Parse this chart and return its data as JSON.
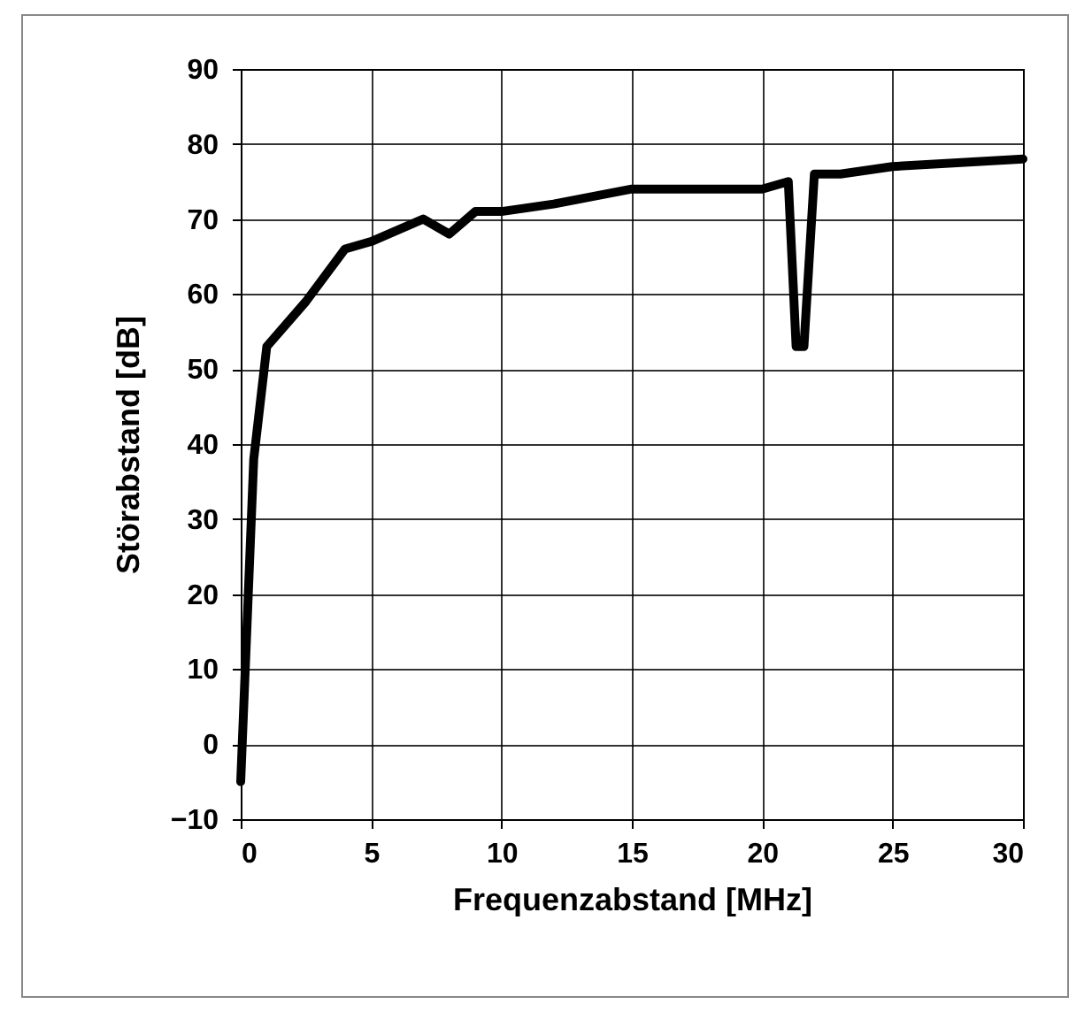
{
  "chart_data": {
    "type": "line",
    "xlabel": "Frequenzabstand [MHz]",
    "ylabel": "Störabstand [dB]",
    "x": [
      0,
      0.5,
      1,
      2.5,
      4,
      5,
      7,
      8,
      9,
      10,
      12,
      15,
      20,
      21,
      21.3,
      21.6,
      22,
      23,
      25,
      30
    ],
    "series": [
      {
        "color": "#000000",
        "values": [
          -5,
          38,
          53,
          59,
          66,
          67,
          70,
          68,
          71,
          71,
          72,
          74,
          74,
          75,
          53,
          53,
          76,
          76,
          77,
          78
        ]
      }
    ],
    "xlim": [
      0,
      30
    ],
    "xticks": [
      0,
      5,
      10,
      15,
      20,
      25,
      30
    ],
    "ylim": [
      -10,
      90
    ],
    "yticks": [
      -10,
      0,
      10,
      20,
      30,
      40,
      50,
      60,
      70,
      80,
      90
    ],
    "grid": true,
    "legend": false,
    "marker": "none",
    "line_style": "solid"
  }
}
